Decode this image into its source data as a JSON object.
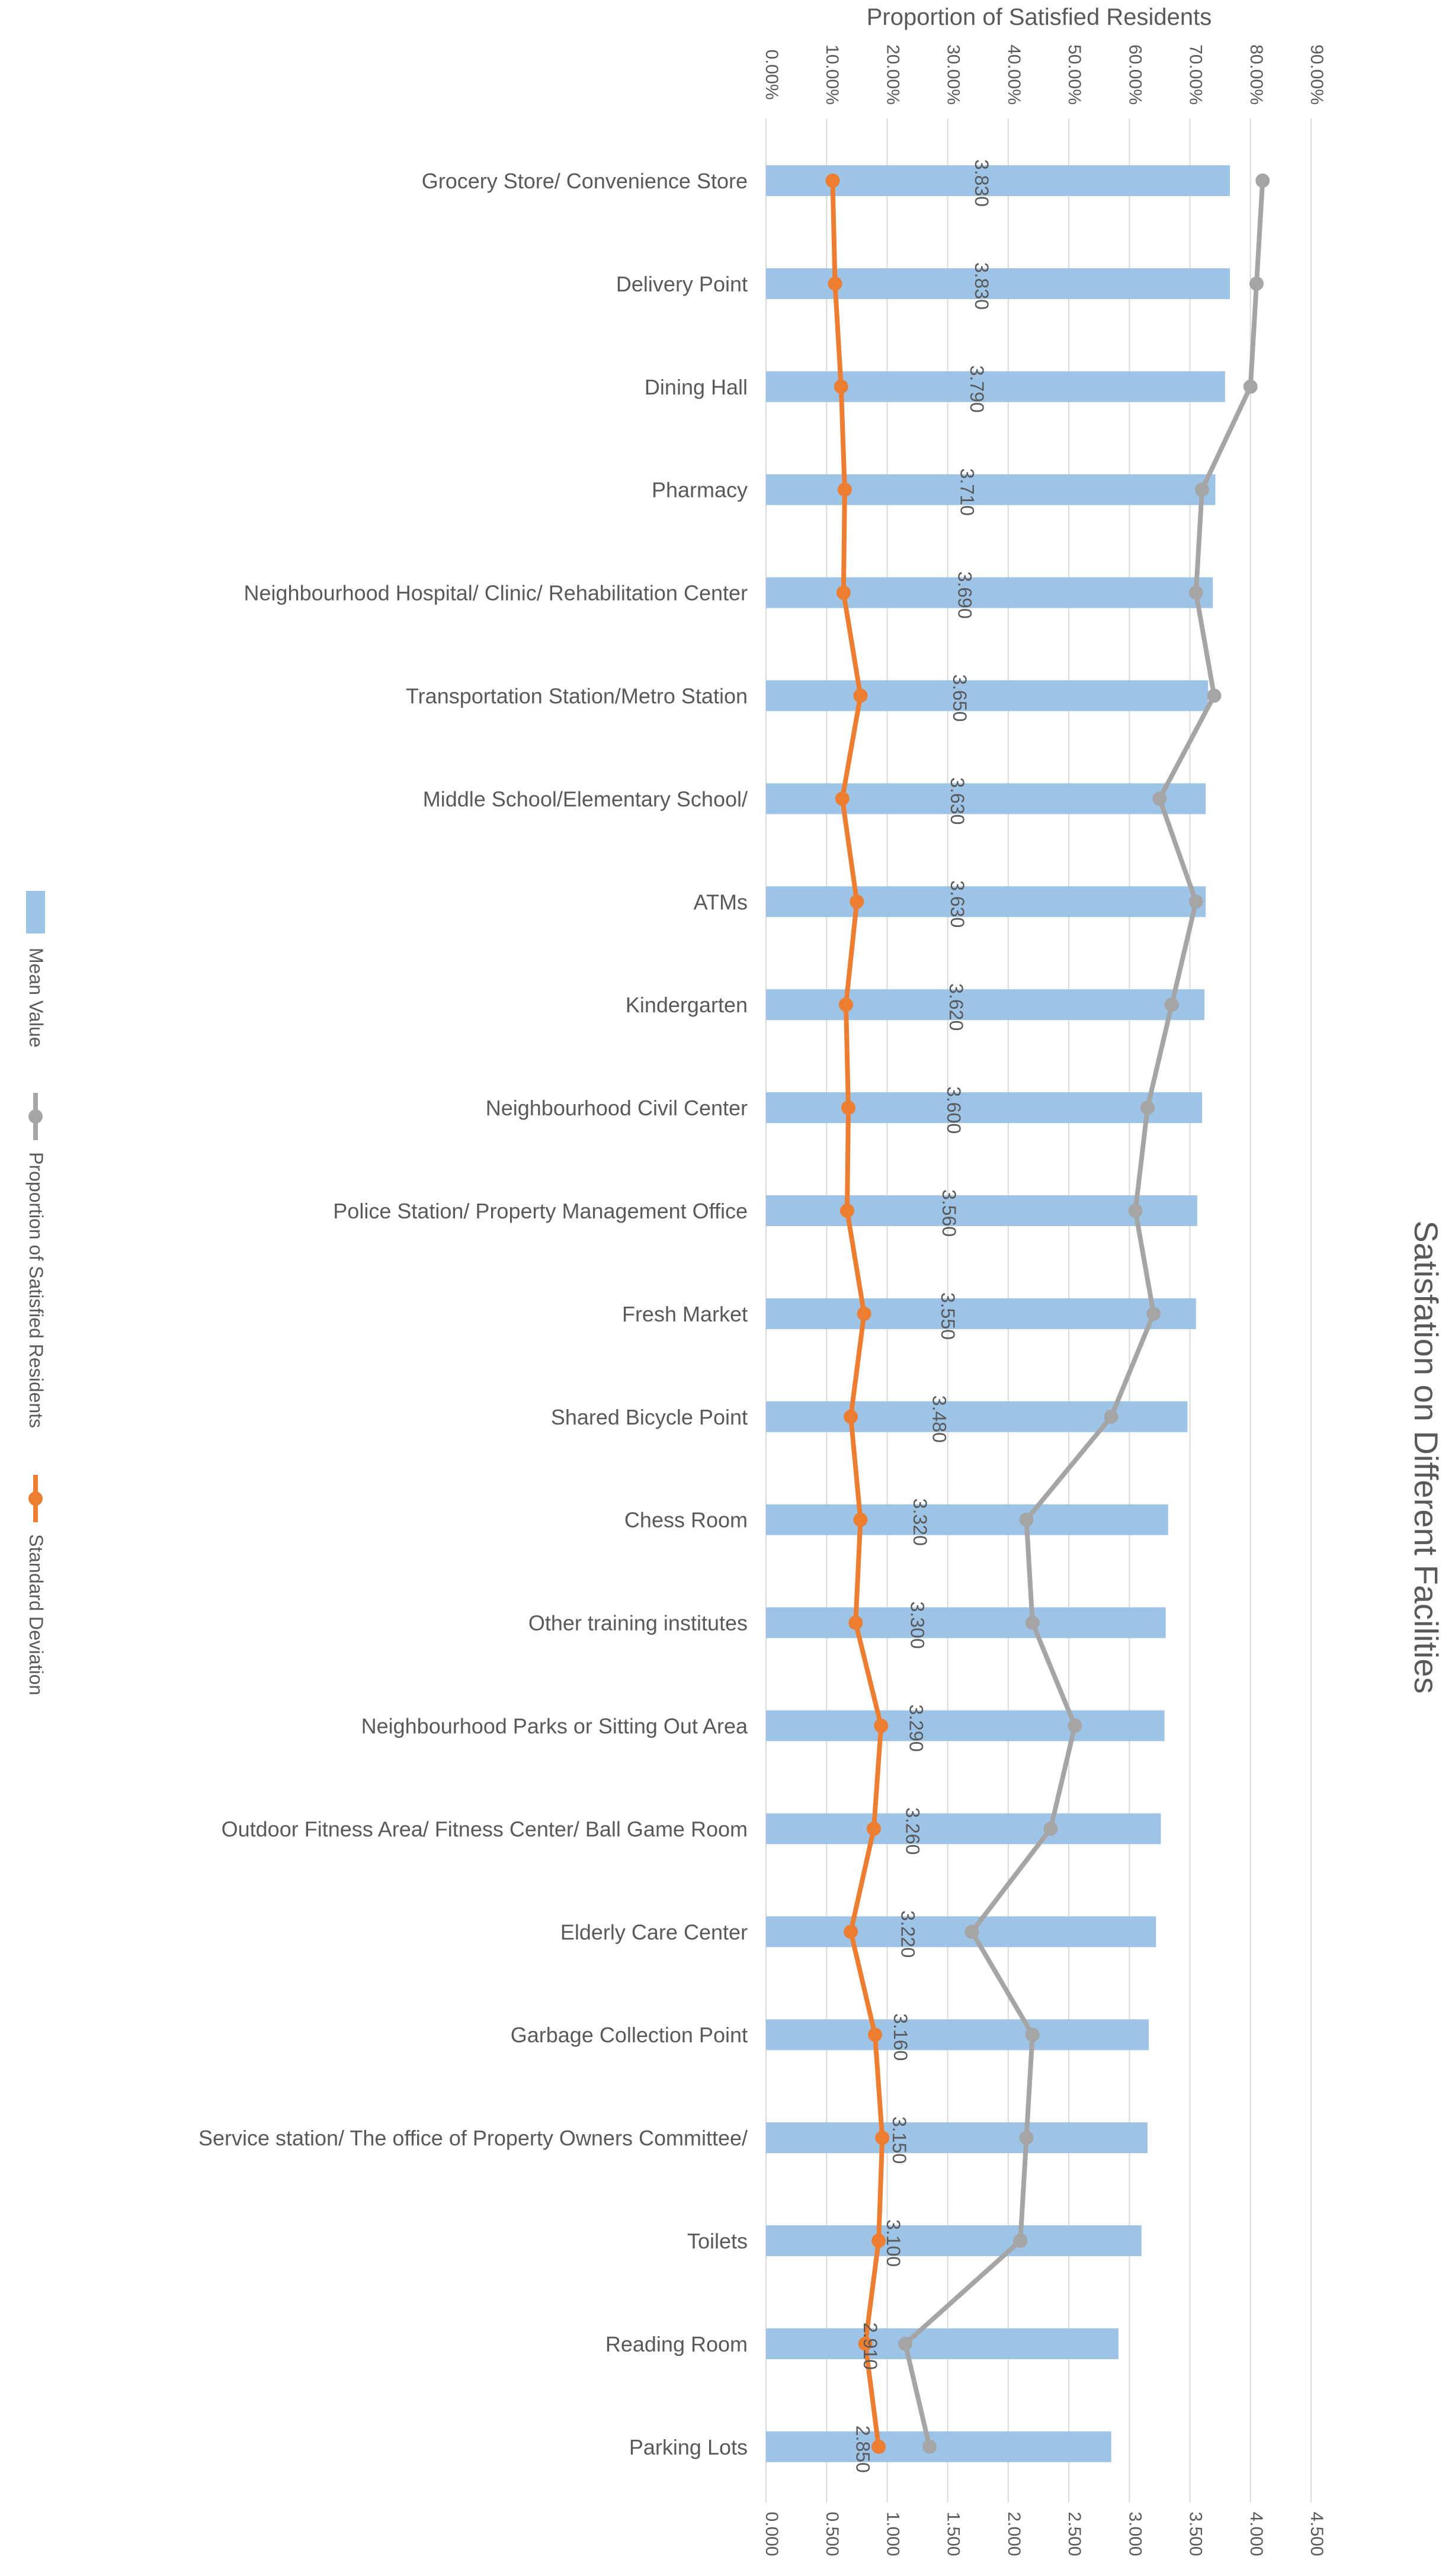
{
  "chart_data": {
    "type": "bar",
    "title": "Satisfation on Different Facilities",
    "categories": [
      "Grocery Store/  Convenience Store",
      "Delivery Point",
      "Dining Hall",
      "Pharmacy",
      "Neighbourhood Hospital/ Clinic/ Rehabilitation Center",
      "Transportation Station/Metro Station",
      "Middle School/Elementary School/",
      "ATMs",
      "Kindergarten",
      "Neighbourhood Civil Center",
      "Police Station/ Property Management Office",
      "Fresh Market",
      "Shared Bicycle Point",
      "Chess Room",
      "Other training institutes",
      "Neighbourhood Parks or Sitting Out Area",
      "Outdoor Fitness Area/ Fitness Center/ Ball Game Room",
      "Elderly Care Center",
      "Garbage Collection Point",
      "Service station/ The office of Property Owners Committee/",
      "Toilets",
      "Reading Room",
      "Parking Lots"
    ],
    "series": [
      {
        "name": "Mean Value",
        "type": "bar",
        "axis": "value",
        "color": "#9DC3E6",
        "values": [
          3.83,
          3.83,
          3.79,
          3.71,
          3.69,
          3.65,
          3.63,
          3.63,
          3.62,
          3.6,
          3.56,
          3.55,
          3.48,
          3.32,
          3.3,
          3.29,
          3.26,
          3.22,
          3.16,
          3.15,
          3.1,
          2.91,
          2.85
        ],
        "labels": [
          "3.830",
          "3.830",
          "3.790",
          "3.710",
          "3.690",
          "3.650",
          "3.630",
          "3.630",
          "3.620",
          "3.600",
          "3.560",
          "3.550",
          "3.480",
          "3.320",
          "3.300",
          "3.290",
          "3.260",
          "3.220",
          "3.160",
          "3.150",
          "3.100",
          "2.910",
          "2.850"
        ]
      },
      {
        "name": "Proportion of Satisfied Residents",
        "type": "line",
        "axis": "proportion",
        "color": "#A5A5A5",
        "values": [
          0.82,
          0.81,
          0.8,
          0.72,
          0.71,
          0.74,
          0.65,
          0.71,
          0.67,
          0.63,
          0.61,
          0.64,
          0.57,
          0.43,
          0.44,
          0.51,
          0.47,
          0.34,
          0.44,
          0.43,
          0.42,
          0.23,
          0.27
        ]
      },
      {
        "name": "Standard Deviation",
        "type": "line",
        "axis": "value",
        "color": "#ED7D31",
        "values": [
          0.55,
          0.57,
          0.62,
          0.65,
          0.64,
          0.78,
          0.63,
          0.75,
          0.66,
          0.68,
          0.67,
          0.81,
          0.7,
          0.78,
          0.74,
          0.95,
          0.89,
          0.7,
          0.9,
          0.96,
          0.93,
          0.82,
          0.93
        ]
      }
    ],
    "value_axis": {
      "min": 0,
      "max": 4.5,
      "ticks": [
        0,
        0.5,
        1,
        1.5,
        2,
        2.5,
        3,
        3.5,
        4,
        4.5
      ],
      "tick_labels": [
        "0.000",
        "0.500",
        "1.000",
        "1.500",
        "2.000",
        "2.500",
        "3.000",
        "3.500",
        "4.000",
        "4.500"
      ]
    },
    "proportion_axis": {
      "title": "Proportion of Satisfied Residents",
      "min": 0,
      "max": 0.9,
      "ticks": [
        0,
        0.1,
        0.2,
        0.3,
        0.4,
        0.5,
        0.6,
        0.7,
        0.8,
        0.9
      ],
      "tick_labels": [
        "0.00%",
        "10.00%",
        "20.00%",
        "30.00%",
        "40.00%",
        "50.00%",
        "60.00%",
        "70.00%",
        "80.00%",
        "90.00%"
      ]
    },
    "legend": {
      "position": "left",
      "entries": [
        "Mean Value",
        "Proportion of Satisfied Residents",
        "Standard Deviation"
      ]
    },
    "grid": true
  }
}
